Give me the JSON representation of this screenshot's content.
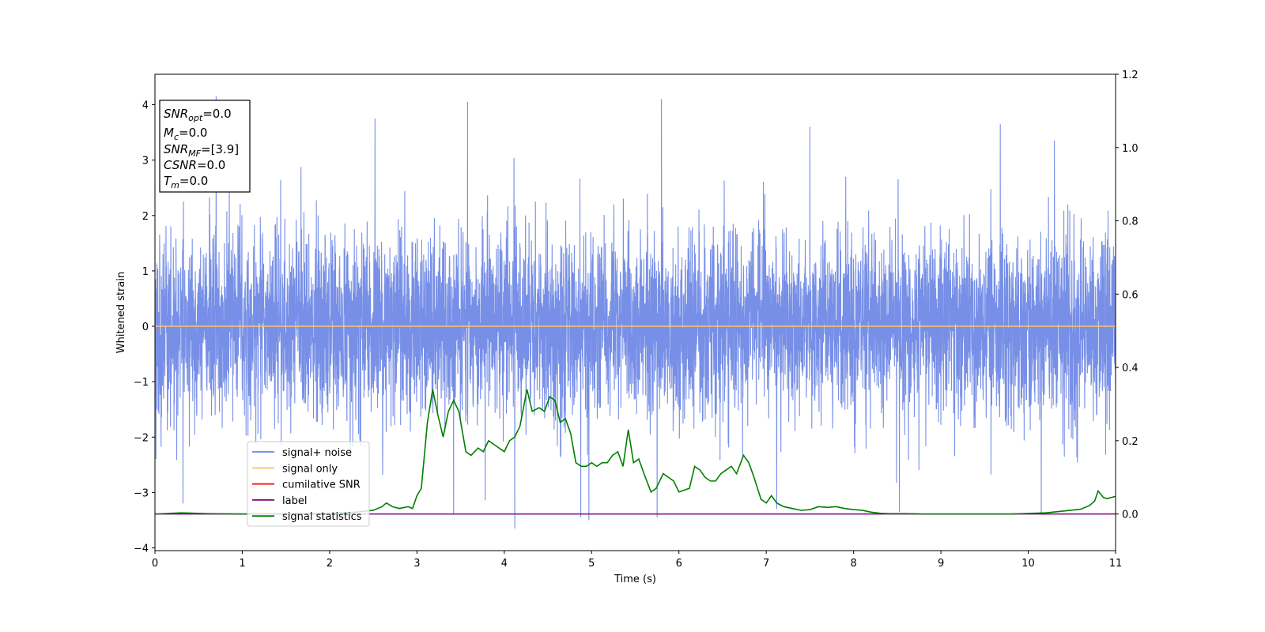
{
  "chart_data": {
    "type": "line",
    "xlabel": "Time (s)",
    "ylabel": "Whitened strain",
    "xlim": [
      0,
      11
    ],
    "ylim": [
      -4.05,
      4.55
    ],
    "y2lim": [
      -0.1,
      1.2
    ],
    "x_ticks": [
      "0",
      "1",
      "2",
      "3",
      "4",
      "5",
      "6",
      "7",
      "8",
      "9",
      "10",
      "11"
    ],
    "y_ticks": [
      "−4",
      "−3",
      "−2",
      "−1",
      "0",
      "1",
      "2",
      "3",
      "4"
    ],
    "y2_ticks": [
      "0.0",
      "0.2",
      "0.4",
      "0.6",
      "0.8",
      "1.0",
      "1.2"
    ],
    "grid": false,
    "legend_position": "lower-left",
    "legend": [
      {
        "label": "signal+ noise",
        "color": "#6b86e4"
      },
      {
        "label": "signal only",
        "color": "#ffc36a"
      },
      {
        "label": "cumilative SNR",
        "color": "#ff0000"
      },
      {
        "label": "label",
        "color": "#800080"
      },
      {
        "label": "signal statistics",
        "color": "#008000"
      }
    ],
    "info_box": {
      "snr_opt": {
        "main": "SNR",
        "sub": "opt",
        "value": "=0.0"
      },
      "mc": {
        "main": "M",
        "sub": "c",
        "value": "=0.0"
      },
      "snr_mf": {
        "main": "SNR",
        "sub": "MF",
        "value": "=[3.9]"
      },
      "csnr": {
        "main": "CSNR",
        "sub": "",
        "value": "=0.0"
      },
      "tm": {
        "main": "T",
        "sub": "m",
        "value": "=0.0"
      }
    },
    "series": [
      {
        "name": "signal+ noise",
        "color": "#6b86e4",
        "note": "whitened noise, roughly Gaussian with unit variance, spanning 0–11 s",
        "envelope_max": 4.15,
        "envelope_min": -3.65,
        "spikes": [
          [
            0.7,
            4.15
          ],
          [
            2.52,
            3.75
          ],
          [
            3.58,
            4.05
          ],
          [
            5.8,
            4.1
          ],
          [
            7.5,
            3.6
          ],
          [
            9.68,
            3.65
          ],
          [
            10.3,
            3.35
          ],
          [
            4.12,
            -3.65
          ],
          [
            4.97,
            -3.5
          ],
          [
            5.75,
            -3.45
          ],
          [
            3.42,
            -3.4
          ],
          [
            10.15,
            -3.4
          ],
          [
            7.12,
            -3.3
          ],
          [
            0.32,
            -3.2
          ]
        ]
      },
      {
        "name": "signal only",
        "color": "#ffc36a",
        "x": [
          0,
          11
        ],
        "y": [
          0,
          0
        ]
      },
      {
        "name": "label",
        "color": "#800080",
        "axis": "right",
        "x": [
          0,
          11
        ],
        "y": [
          0,
          0
        ]
      },
      {
        "name": "signal statistics",
        "color": "#008000",
        "axis": "right",
        "x": [
          0,
          0.3,
          0.6,
          1.0,
          1.5,
          2.0,
          2.3,
          2.5,
          2.6,
          2.65,
          2.72,
          2.8,
          2.9,
          2.95,
          3.0,
          3.05,
          3.12,
          3.18,
          3.24,
          3.3,
          3.36,
          3.42,
          3.48,
          3.56,
          3.62,
          3.7,
          3.76,
          3.82,
          3.88,
          4.0,
          4.06,
          4.12,
          4.18,
          4.26,
          4.32,
          4.4,
          4.46,
          4.52,
          4.58,
          4.64,
          4.7,
          4.76,
          4.82,
          4.88,
          4.94,
          5.0,
          5.06,
          5.12,
          5.18,
          5.24,
          5.3,
          5.36,
          5.42,
          5.48,
          5.54,
          5.6,
          5.68,
          5.74,
          5.82,
          5.88,
          5.94,
          6.0,
          6.06,
          6.12,
          6.18,
          6.24,
          6.3,
          6.36,
          6.42,
          6.48,
          6.54,
          6.6,
          6.66,
          6.74,
          6.8,
          6.86,
          6.94,
          7.0,
          7.06,
          7.12,
          7.2,
          7.3,
          7.4,
          7.5,
          7.6,
          7.7,
          7.8,
          7.9,
          8.0,
          8.1,
          8.2,
          8.3,
          8.4,
          8.6,
          8.8,
          9.0,
          9.4,
          9.8,
          10.2,
          10.4,
          10.6,
          10.7,
          10.76,
          10.8,
          10.86,
          10.9,
          11.0
        ],
        "y": [
          0.0,
          0.003,
          0.001,
          0.0,
          0.001,
          0.002,
          0.005,
          0.01,
          0.02,
          0.03,
          0.02,
          0.015,
          0.02,
          0.015,
          0.05,
          0.07,
          0.25,
          0.34,
          0.27,
          0.21,
          0.28,
          0.31,
          0.28,
          0.17,
          0.16,
          0.18,
          0.17,
          0.2,
          0.19,
          0.17,
          0.2,
          0.21,
          0.24,
          0.34,
          0.28,
          0.29,
          0.28,
          0.32,
          0.31,
          0.25,
          0.26,
          0.22,
          0.14,
          0.13,
          0.13,
          0.14,
          0.13,
          0.14,
          0.14,
          0.16,
          0.17,
          0.13,
          0.23,
          0.14,
          0.15,
          0.11,
          0.06,
          0.07,
          0.11,
          0.1,
          0.09,
          0.06,
          0.065,
          0.07,
          0.13,
          0.12,
          0.1,
          0.09,
          0.09,
          0.11,
          0.12,
          0.13,
          0.11,
          0.16,
          0.14,
          0.1,
          0.04,
          0.03,
          0.05,
          0.03,
          0.02,
          0.015,
          0.01,
          0.012,
          0.02,
          0.018,
          0.02,
          0.015,
          0.012,
          0.01,
          0.005,
          0.002,
          0.001,
          0.001,
          0.0,
          0.0,
          0.0,
          0.0,
          0.003,
          0.008,
          0.013,
          0.023,
          0.035,
          0.063,
          0.045,
          0.042,
          0.048
        ]
      }
    ]
  }
}
